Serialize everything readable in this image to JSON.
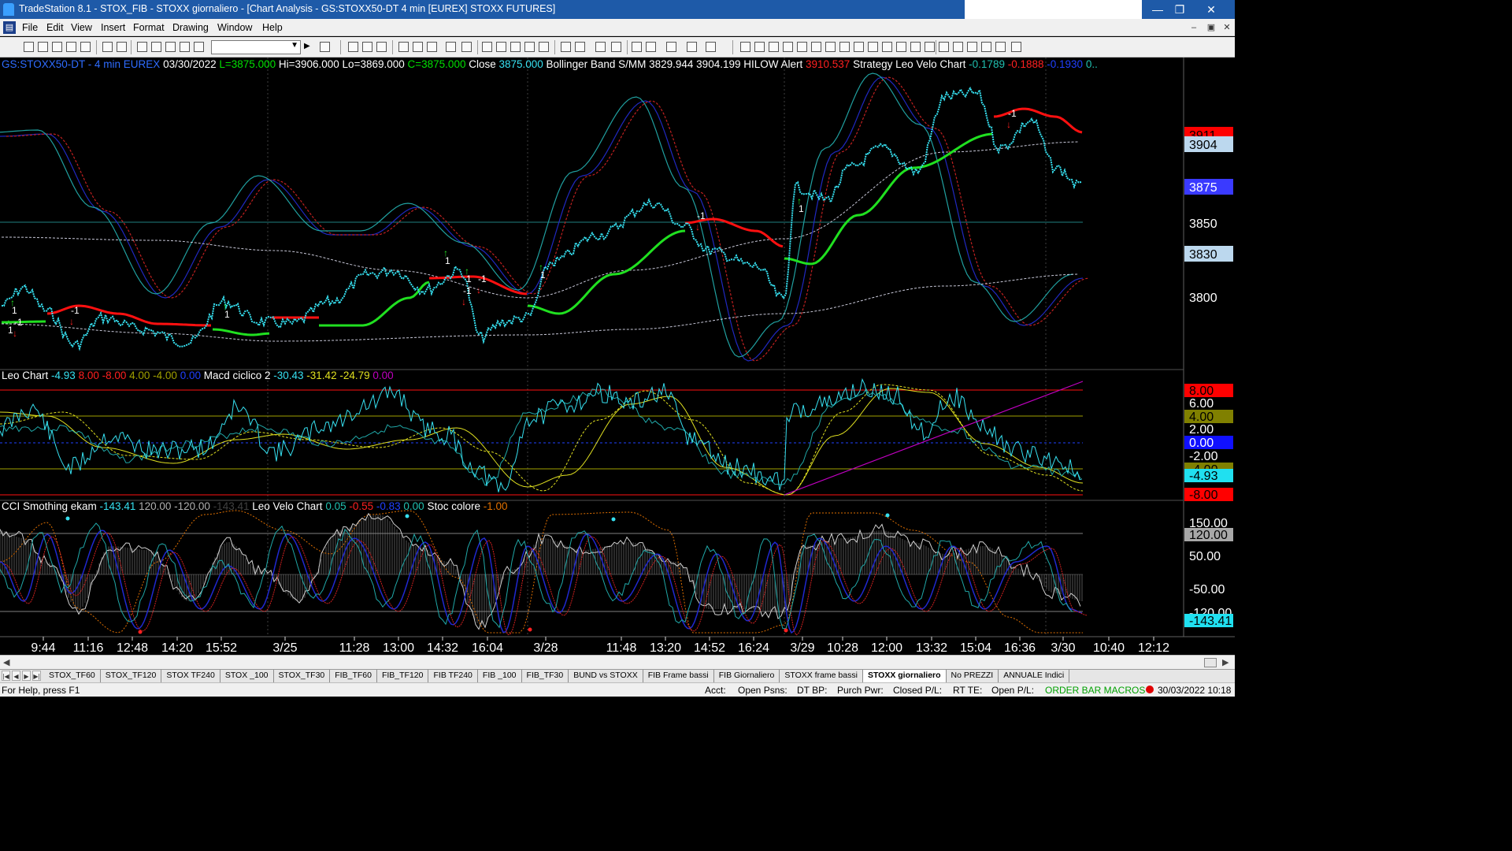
{
  "window": {
    "title": "TradeStation 8.1 - STOX_FIB - STOXX giornaliero - [Chart Analysis - GS:STOXX50-DT  4 min  [EUREX] STOXX FUTURES]",
    "minimize": "—",
    "restore": "❐",
    "close": "✕"
  },
  "menu": {
    "items": [
      "File",
      "Edit",
      "View",
      "Insert",
      "Format",
      "Drawing",
      "Window",
      "Help"
    ],
    "mdi_minimize": "–",
    "mdi_restore": "▣",
    "mdi_close": "✕"
  },
  "toolbar": {
    "symbol_value": "",
    "dropdown_icon": "caret-down-icon"
  },
  "chart": {
    "price_header": [
      {
        "text": "GS:STOXX50-DT - 4 min",
        "color": "#2e6cff"
      },
      {
        "text": "EUREX",
        "color": "#2e6cff"
      },
      {
        "text": "03/30/2022",
        "color": "#ffffff"
      },
      {
        "text": "L=3875.000",
        "color": "#00e000"
      },
      {
        "text": "Hi=3906.000",
        "color": "#ffffff"
      },
      {
        "text": "Lo=3869.000",
        "color": "#ffffff"
      },
      {
        "text": "C=3875.000",
        "color": "#00e000"
      },
      {
        "text": "Close",
        "color": "#ffffff"
      },
      {
        "text": "3875.000",
        "color": "#36e0f0"
      },
      {
        "text": "Bollinger Band S/MM",
        "color": "#ffffff"
      },
      {
        "text": "3829.944",
        "color": "#ffffff"
      },
      {
        "text": "3904.199",
        "color": "#ffffff"
      },
      {
        "text": "HILOW Alert",
        "color": "#ffffff"
      },
      {
        "text": "3910.537",
        "color": "#ff2020"
      },
      {
        "text": "Strategy",
        "color": "#ffffff"
      },
      {
        "text": "Leo Velo Chart",
        "color": "#ffffff"
      },
      {
        "text": "-0.1789",
        "color": "#20c0b0"
      },
      {
        "text": "-0.1888",
        "color": "#ff2020"
      },
      {
        "text": "-0.1930",
        "color": "#2040ff"
      },
      {
        "text": "0..",
        "color": "#20c0b0"
      }
    ],
    "price_axis": [
      "3850",
      "3800"
    ],
    "price_boxes": [
      {
        "text": "3911",
        "bg": "#ff0000",
        "fg": "#000000"
      },
      {
        "text": "3904",
        "bg": "#bcd8ee",
        "fg": "#000000"
      },
      {
        "text": "3875",
        "bg": "#3a3aff",
        "fg": "#ffffff"
      },
      {
        "text": "3830",
        "bg": "#bcd8ee",
        "fg": "#000000"
      }
    ],
    "trade_markers": [
      "1",
      "-1",
      "1",
      "1",
      "-1",
      "1",
      "-1",
      "1",
      "-1",
      "1",
      "-1",
      "1",
      "-1"
    ],
    "osc_header": [
      {
        "text": "Leo Chart",
        "color": "#ffffff"
      },
      {
        "text": "-4.93",
        "color": "#36e0f0"
      },
      {
        "text": "8.00",
        "color": "#ff2020"
      },
      {
        "text": "-8.00",
        "color": "#ff2020"
      },
      {
        "text": "4.00",
        "color": "#a0a000"
      },
      {
        "text": "-4.00",
        "color": "#a0a000"
      },
      {
        "text": "0.00",
        "color": "#2040ff"
      },
      {
        "text": "Macd ciclico 2",
        "color": "#ffffff"
      },
      {
        "text": "-30.43",
        "color": "#36e0f0"
      },
      {
        "text": "-31.42",
        "color": "#e0e020"
      },
      {
        "text": "-24.79",
        "color": "#e0e020"
      },
      {
        "text": "0.00",
        "color": "#c000c0"
      }
    ],
    "osc_axis": [
      {
        "text": "8.00",
        "bg": "#ff0000",
        "fg": "#000000"
      },
      {
        "text": "6.00",
        "bg": "",
        "fg": "#ffffff"
      },
      {
        "text": "4.00",
        "bg": "#808000",
        "fg": "#000000"
      },
      {
        "text": "2.00",
        "bg": "",
        "fg": "#ffffff"
      },
      {
        "text": "0.00",
        "bg": "#1010ff",
        "fg": "#ffffff"
      },
      {
        "text": "-2.00",
        "bg": "",
        "fg": "#ffffff"
      },
      {
        "text": "-4.00",
        "bg": "#808000",
        "fg": "#000000"
      },
      {
        "text": "-4.93",
        "bg": "#20e0f0",
        "fg": "#000000"
      },
      {
        "text": "-8.00",
        "bg": "#ff0000",
        "fg": "#000000"
      }
    ],
    "cci_header": [
      {
        "text": "CCI Smothing ekam",
        "color": "#ffffff"
      },
      {
        "text": "-143.41",
        "color": "#36e0f0"
      },
      {
        "text": "120.00",
        "color": "#b0b0b0"
      },
      {
        "text": "-120.00",
        "color": "#b0b0b0"
      },
      {
        "text": "-143.41",
        "color": "#404040"
      },
      {
        "text": "Leo Velo Chart",
        "color": "#ffffff"
      },
      {
        "text": "0.05",
        "color": "#20c0b0"
      },
      {
        "text": "-0.55",
        "color": "#ff2020"
      },
      {
        "text": "-0.83",
        "color": "#2040ff"
      },
      {
        "text": "0.00",
        "color": "#20c0b0"
      },
      {
        "text": "Stoc colore",
        "color": "#ffffff"
      },
      {
        "text": "-1.00",
        "color": "#e07000"
      }
    ],
    "cci_axis": [
      {
        "text": "150.00",
        "bg": "",
        "fg": "#ffffff"
      },
      {
        "text": "120.00",
        "bg": "#a8a8a8",
        "fg": "#000000"
      },
      {
        "text": "50.00",
        "bg": "",
        "fg": "#ffffff"
      },
      {
        "text": "-50.00",
        "bg": "",
        "fg": "#ffffff"
      },
      {
        "text": "-120.00",
        "bg": "",
        "fg": "#ffffff"
      },
      {
        "text": "-143.41",
        "bg": "#20e0f0",
        "fg": "#000000"
      }
    ],
    "time_axis": [
      "9:44",
      "11:16",
      "12:48",
      "14:20",
      "15:52",
      "3/25",
      "11:28",
      "13:00",
      "14:32",
      "16:04",
      "3/28",
      "11:48",
      "13:20",
      "14:52",
      "16:24",
      "3/29",
      "10:28",
      "12:00",
      "13:32",
      "15:04",
      "16:36",
      "3/30",
      "10:40",
      "12:12"
    ],
    "colors": {
      "price_bars": "#36e0f0",
      "trend_up": "#20e020",
      "trend_down": "#ff1010",
      "band": "#c8c8d8",
      "cycle_blue": "#2028c0",
      "cycle_teal": "#20a0a0",
      "cycle_red": "#c02020",
      "osc_yellow": "#e0e020",
      "macd_magenta": "#c000c0"
    }
  },
  "tabs": {
    "nav": [
      "|◀",
      "◀",
      "▶",
      "▶|"
    ],
    "items": [
      "STOX_TF60",
      "STOX_TF120",
      "STOX TF240",
      "STOX _100",
      "STOX_TF30",
      "FIB_TF60",
      "FIB_TF120",
      "FIB TF240",
      "FIB _100",
      "FIB_TF30",
      "BUND vs STOXX",
      "FIB Frame bassi",
      "FIB Giornaliero",
      "STOXX frame bassi",
      "STOXX giornaliero",
      "No PREZZI",
      "ANNUALE Indici"
    ],
    "active": "STOXX giornaliero"
  },
  "status": {
    "help": "For Help, press F1",
    "acct": "Acct:",
    "open_psns": "Open Psns:",
    "dt_bp": "DT BP:",
    "purch_pwr": "Purch Pwr:",
    "closed_pl": "Closed P/L:",
    "rt_te": "RT TE:",
    "open_pl": "Open P/L:",
    "macros": "ORDER BAR  MACROS",
    "datetime": "30/03/2022 10:18"
  }
}
